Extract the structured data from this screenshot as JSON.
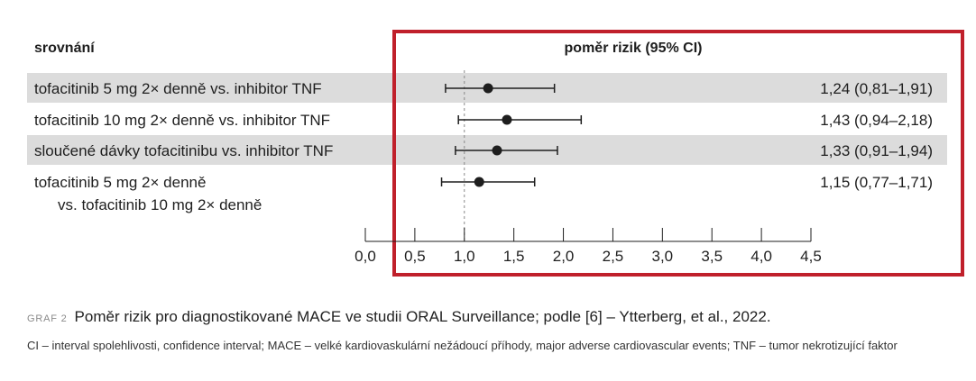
{
  "chart_data": {
    "type": "forest",
    "column_header": "srovnání",
    "title": "poměr rizik (95% CI)",
    "reference_line": 1.0,
    "xlim": [
      0.0,
      4.5
    ],
    "x_ticks": [
      "0,0",
      "0,5",
      "1,0",
      "1,5",
      "2,0",
      "2,5",
      "3,0",
      "3,5",
      "4,0",
      "4,5"
    ],
    "rows": [
      {
        "label": [
          "tofacitinib 5 mg 2× denně vs. inhibitor TNF"
        ],
        "hr": 1.24,
        "lo": 0.81,
        "hi": 1.91,
        "text": "1,24 (0,81–1,91)",
        "shaded": true
      },
      {
        "label": [
          "tofacitinib 10 mg 2× denně vs. inhibitor TNF"
        ],
        "hr": 1.43,
        "lo": 0.94,
        "hi": 2.18,
        "text": "1,43 (0,94–2,18)",
        "shaded": false
      },
      {
        "label": [
          "sloučené dávky tofacitinibu vs. inhibitor TNF"
        ],
        "hr": 1.33,
        "lo": 0.91,
        "hi": 1.94,
        "text": "1,33 (0,91–1,94)",
        "shaded": true
      },
      {
        "label": [
          "tofacitinib 5 mg 2× denně",
          "vs. tofacitinib 10 mg 2× denně"
        ],
        "hr": 1.15,
        "lo": 0.77,
        "hi": 1.71,
        "text": "1,15 (0,77–1,71)",
        "shaded": false
      }
    ]
  },
  "colors": {
    "frame": "#c0202b",
    "band": "#dcdcdc",
    "ink": "#1e1e1e"
  },
  "caption": {
    "label": "GRAF 2",
    "text": "Poměr rizik pro diagnostikované MACE ve studii ORAL Surveillance; podle [6] – Ytterberg, et al., 2022."
  },
  "note": "CI – interval spolehlivosti, confidence interval; MACE – velké kardiovaskulární nežádoucí příhody, major adverse cardiovascular events; TNF – tumor nekrotizující faktor"
}
